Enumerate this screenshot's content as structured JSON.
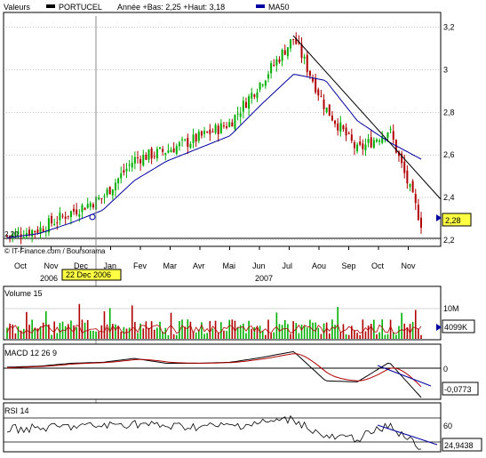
{
  "header": {
    "label": "Valeurs",
    "symbol": "PORTUCEL",
    "range": "Année +Bas: 2,25 +Haut: 3,18",
    "ma_label": "MA50",
    "colors": {
      "price_up": "#00b000",
      "price_down": "#b00000",
      "ma": "#0000a0"
    }
  },
  "price_panel": {
    "type": "candlestick",
    "y_ticks": [
      "3,2",
      "3",
      "2,8",
      "2,6",
      "2,4",
      "2,2"
    ],
    "y_values": [
      3.2,
      3.0,
      2.8,
      2.6,
      2.4,
      2.2
    ],
    "ylim": [
      2.17,
      3.27
    ],
    "left_label": "2,20",
    "last_value": "2,28",
    "credit": "© IT-Finance.com / Boursorama",
    "cursor_date": "22 Dec 2006"
  },
  "x_axis": {
    "months": [
      "Oct",
      "Nov",
      "Dec",
      "Jan",
      "Fev",
      "Mar",
      "Avr",
      "Mai",
      "Jun",
      "Jul",
      "Aou",
      "Sep",
      "Oct",
      "Nov"
    ],
    "years": [
      "2006",
      "2007"
    ]
  },
  "volume_panel": {
    "title": "Volume 15",
    "tick": "10M",
    "last_value": "4099K"
  },
  "macd_panel": {
    "title": "MACD 12 26 9",
    "tick": "0",
    "last_value": "-0,0773"
  },
  "rsi_panel": {
    "title": "RSI 14",
    "tick": "60",
    "last_value": "24,9438"
  },
  "chart_data": {
    "type": "line",
    "title": "PORTUCEL",
    "x": [
      "Oct",
      "Nov",
      "Dec",
      "Jan",
      "Fev",
      "Mar",
      "Avr",
      "Mai",
      "Jun",
      "Jul",
      "Aou",
      "Sep",
      "Oct",
      "Nov"
    ],
    "series": [
      {
        "name": "PORTUCEL",
        "values": [
          2.22,
          2.25,
          2.33,
          2.4,
          2.58,
          2.62,
          2.68,
          2.75,
          2.95,
          3.15,
          2.82,
          2.62,
          2.72,
          2.28
        ]
      },
      {
        "name": "MA50",
        "values": [
          2.21,
          2.23,
          2.28,
          2.34,
          2.48,
          2.57,
          2.63,
          2.69,
          2.84,
          2.98,
          2.95,
          2.76,
          2.66,
          2.58
        ]
      }
    ],
    "ylim": [
      2.17,
      3.27
    ],
    "grid": true,
    "legend": "top-left"
  }
}
